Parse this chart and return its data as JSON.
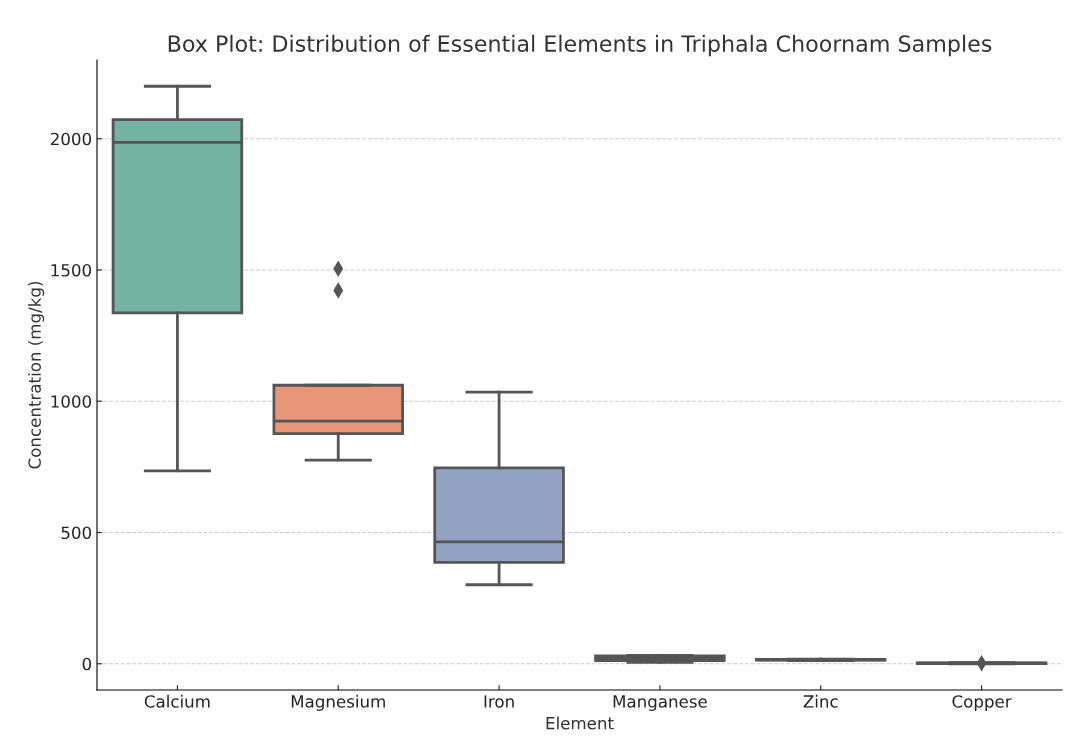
{
  "chart_data": {
    "type": "box",
    "title": "Box Plot: Distribution of Essential Elements in Triphala Choornam Samples",
    "xlabel": "Element",
    "ylabel": "Concentration (mg/kg)",
    "categories": [
      "Calcium",
      "Magnesium",
      "Iron",
      "Manganese",
      "Zinc",
      "Copper"
    ],
    "colors": [
      "#73b4a0",
      "#e8967a",
      "#93a3c2",
      "#d28cb6",
      "#a5c86a",
      "#e6cf5a"
    ],
    "boxes": [
      {
        "low": 735,
        "q1": 1337,
        "median": 1986,
        "q3": 2073,
        "high": 2200
      },
      {
        "low": 776,
        "q1": 877,
        "median": 924,
        "q3": 1061,
        "high": 1061,
        "outliers": [
          1505,
          1422
        ]
      },
      {
        "low": 301,
        "q1": 386,
        "median": 464,
        "q3": 746,
        "high": 1035
      },
      {
        "low": 5,
        "q1": 12,
        "median": 20,
        "q3": 30,
        "high": 32
      },
      {
        "low": 12,
        "q1": 14,
        "median": 15,
        "q3": 17,
        "high": 18
      },
      {
        "low": 0,
        "q1": 1,
        "median": 2,
        "q3": 3,
        "high": 4,
        "outliers": [
          2
        ]
      }
    ],
    "ylim": [
      -100,
      2300
    ],
    "yticks": [
      0,
      500,
      1000,
      1500,
      2000
    ],
    "grid": "y",
    "marker": "diamond"
  }
}
